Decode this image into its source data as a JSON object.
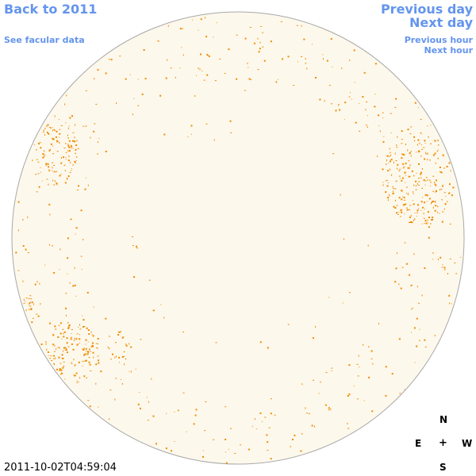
{
  "links": {
    "back": "Back to 2011",
    "facular": "See facular data",
    "previous_day": "Previous day",
    "next_day": "Next day",
    "previous_hour": "Previous hour",
    "next_hour": "Next hour"
  },
  "timestamp": "2011-10-02T04:59:04",
  "compass": {
    "north": "N",
    "east": "E",
    "center": "+",
    "west": "W",
    "south": "S"
  },
  "colors": {
    "link": "#6495ed",
    "disk_fill": "#fdf8ec",
    "disk_stroke": "#a8a8a8",
    "faculae": "#ef8c00"
  }
}
